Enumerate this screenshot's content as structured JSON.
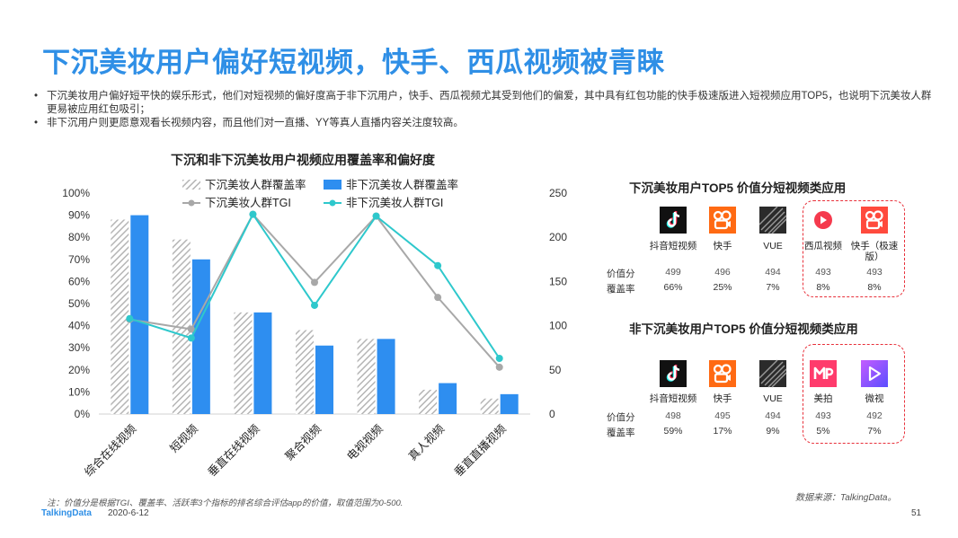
{
  "title": "下沉美妆用户偏好短视频，快手、西瓜视频被青睐",
  "bullets": [
    "下沉美妆用户偏好短平快的娱乐形式，他们对短视频的偏好度高于非下沉用户，快手、西瓜视频尤其受到他们的偏爱，其中具有红包功能的快手极速版进入短视频应用TOP5，也说明下沉美妆人群更易被应用红包吸引；",
    "非下沉用户则更愿意观看长视频内容，而且他们对一直播、YY等真人直播内容关注度较高。"
  ],
  "chart_data": {
    "type": "bar",
    "title": "下沉和非下沉美妆用户视频应用覆盖率和偏好度",
    "categories": [
      "综合在线视频",
      "短视频",
      "垂直在线视频",
      "聚合视频",
      "电视视频",
      "真人视频",
      "垂直直播视频"
    ],
    "y_left_ticks": [
      "0%",
      "10%",
      "20%",
      "30%",
      "40%",
      "50%",
      "60%",
      "70%",
      "80%",
      "90%",
      "100%"
    ],
    "y_right_ticks": [
      "0",
      "50",
      "100",
      "150",
      "200",
      "250"
    ],
    "ylim_left": [
      0,
      100
    ],
    "ylim_right": [
      0,
      250
    ],
    "series": [
      {
        "name": "下沉美妆人群覆盖率",
        "type": "bar",
        "axis": "left",
        "pattern": "hatch",
        "color": "#bdbdbd",
        "values": [
          88,
          79,
          46,
          38,
          34,
          11,
          7
        ]
      },
      {
        "name": "非下沉美妆人群覆盖率",
        "type": "bar",
        "axis": "left",
        "color": "#2e8ef0",
        "values": [
          90,
          70,
          46,
          31,
          34,
          14,
          9
        ]
      },
      {
        "name": "下沉美妆人群TGI",
        "type": "line",
        "axis": "right",
        "color": "#a8a8a8",
        "values": [
          107,
          96,
          226,
          149,
          224,
          132,
          53
        ]
      },
      {
        "name": "非下沉美妆人群TGI",
        "type": "line",
        "axis": "right",
        "color": "#2ec8cc",
        "values": [
          108,
          86,
          226,
          123,
          224,
          168,
          63
        ]
      }
    ]
  },
  "panel1": {
    "title": "下沉美妆用户TOP5 价值分短视频类应用",
    "apps": [
      {
        "name": "抖音短视频",
        "icon": "douyin-icon",
        "score": "499",
        "coverage": "66%"
      },
      {
        "name": "快手",
        "icon": "kuaishou-icon",
        "score": "496",
        "coverage": "25%"
      },
      {
        "name": "VUE",
        "icon": "vue-icon",
        "score": "494",
        "coverage": "7%"
      },
      {
        "name": "西瓜视频",
        "icon": "xigua-icon",
        "score": "493",
        "coverage": "8%"
      },
      {
        "name": "快手（极速版）",
        "icon": "kuaishou-lite-icon",
        "score": "493",
        "coverage": "8%"
      }
    ],
    "row_labels": [
      "价值分",
      "覆盖率"
    ]
  },
  "panel2": {
    "title": "非下沉美妆用户TOP5 价值分短视频类应用",
    "apps": [
      {
        "name": "抖音短视频",
        "icon": "douyin-icon",
        "score": "498",
        "coverage": "59%"
      },
      {
        "name": "快手",
        "icon": "kuaishou-icon",
        "score": "495",
        "coverage": "17%"
      },
      {
        "name": "VUE",
        "icon": "vue-icon",
        "score": "494",
        "coverage": "9%"
      },
      {
        "name": "美拍",
        "icon": "meipai-icon",
        "score": "493",
        "coverage": "5%"
      },
      {
        "name": "微视",
        "icon": "weishi-icon",
        "score": "492",
        "coverage": "7%"
      }
    ],
    "row_labels": [
      "价值分",
      "覆盖率"
    ]
  },
  "footer": {
    "note": "注：价值分是根据TGI、覆盖率、活跃率3个指标的排名综合评估app的价值，取值范围为0-500.",
    "source": "数据来源：TalkingData。",
    "logo": "TalkingData",
    "date": "2020-6-12",
    "page": "51"
  },
  "colors": {
    "accent": "#2f8fe6",
    "highlight_box": "#e8303a"
  }
}
